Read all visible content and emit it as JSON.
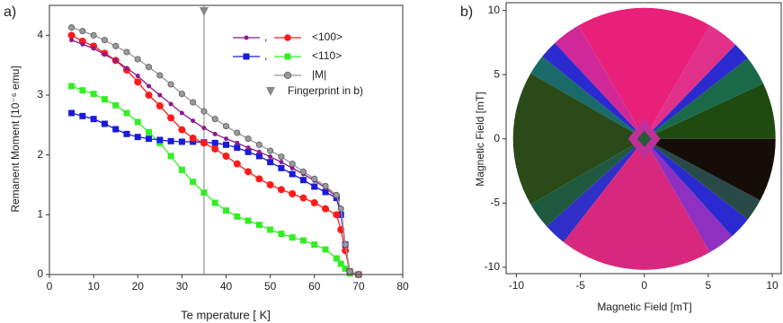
{
  "chart_data": [
    {
      "type": "line",
      "panel_label": "a)",
      "xlabel": "Te mperature [ K]",
      "ylabel": "Remanent Moment [10⁻⁶ emu]",
      "xlim": [
        0,
        80
      ],
      "xticks": [
        0,
        10,
        20,
        30,
        40,
        50,
        60,
        70,
        80
      ],
      "ylim": [
        0,
        4.5
      ],
      "yticks": [
        0,
        1,
        2,
        3,
        4
      ],
      "x": [
        5,
        7.5,
        10,
        12.5,
        15,
        17.5,
        20,
        22.5,
        25,
        27.5,
        30,
        32.5,
        35,
        37.5,
        40,
        42.5,
        45,
        47.5,
        50,
        52.5,
        55,
        57.5,
        60,
        62.5,
        65,
        66,
        67,
        68,
        70
      ],
      "series": [
        {
          "name": ",",
          "color": "#8b1a8b",
          "marker": "circle",
          "values": [
            3.92,
            3.85,
            3.78,
            3.68,
            3.58,
            3.45,
            3.32,
            3.15,
            3.0,
            2.85,
            2.7,
            2.57,
            2.45,
            2.35,
            2.27,
            2.2,
            2.12,
            2.05,
            1.97,
            1.88,
            1.78,
            1.68,
            1.57,
            1.45,
            1.3,
            1.1,
            0.5,
            0.05,
            0
          ]
        },
        {
          "name": "<100>",
          "color": "#ff1a1a",
          "marker": "circle",
          "values": [
            4.0,
            3.9,
            3.82,
            3.7,
            3.58,
            3.42,
            3.22,
            3.0,
            2.82,
            2.62,
            2.42,
            2.28,
            2.2,
            2.1,
            1.98,
            1.85,
            1.72,
            1.6,
            1.5,
            1.42,
            1.35,
            1.28,
            1.2,
            1.1,
            1.0,
            0.75,
            0.4,
            0.05,
            0
          ]
        },
        {
          "name": ",",
          "color": "#1a1adb",
          "marker": "square",
          "values": [
            2.7,
            2.65,
            2.6,
            2.52,
            2.43,
            2.35,
            2.3,
            2.27,
            2.25,
            2.23,
            2.22,
            2.22,
            2.21,
            2.2,
            2.17,
            2.12,
            2.05,
            1.98,
            1.88,
            1.78,
            1.68,
            1.58,
            1.47,
            1.38,
            1.28,
            1.0,
            0.5,
            0.05,
            0
          ]
        },
        {
          "name": "<110>",
          "color": "#33ee22",
          "marker": "square",
          "values": [
            3.15,
            3.08,
            3.02,
            2.93,
            2.83,
            2.7,
            2.55,
            2.38,
            2.2,
            1.98,
            1.75,
            1.55,
            1.37,
            1.2,
            1.07,
            0.97,
            0.9,
            0.83,
            0.75,
            0.68,
            0.62,
            0.57,
            0.5,
            0.42,
            0.27,
            0.18,
            0.1,
            0.02,
            0
          ]
        },
        {
          "name": "|M|",
          "color": "#999999",
          "marker": "circle",
          "values": [
            4.13,
            4.07,
            4.0,
            3.92,
            3.82,
            3.72,
            3.6,
            3.47,
            3.33,
            3.18,
            3.02,
            2.88,
            2.73,
            2.6,
            2.48,
            2.37,
            2.27,
            2.17,
            2.07,
            1.97,
            1.85,
            1.72,
            1.6,
            1.48,
            1.33,
            1.1,
            0.5,
            0.05,
            0
          ]
        }
      ],
      "annotation": {
        "x": 35,
        "label": "Fingerprint in b)"
      }
    },
    {
      "type": "image",
      "panel_label": "b)",
      "xlabel": "Magnetic Field [mT]",
      "ylabel": "Magnetic Field [mT]",
      "xlim": [
        -10.8,
        10.7
      ],
      "xticks": [
        -10,
        -5,
        0,
        5,
        10
      ],
      "ylim": [
        -10.5,
        10.6
      ],
      "yticks": [
        -10,
        -5,
        0,
        5,
        10
      ]
    }
  ]
}
